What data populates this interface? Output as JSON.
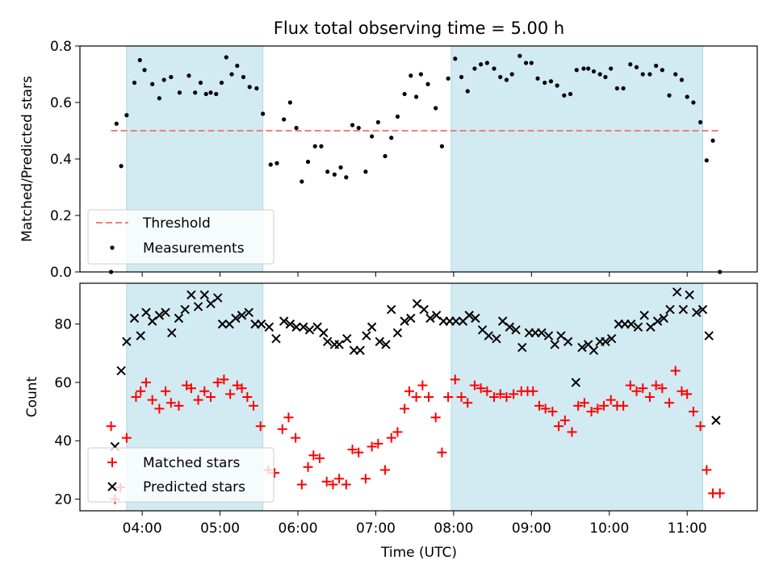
{
  "chart_data": {
    "title": "Flux total observing time = 5.00 h",
    "x_axis": {
      "label": "Time (UTC)",
      "range_hours": [
        3.2,
        11.9
      ],
      "ticks": [
        {
          "v": 4,
          "label": "04:00"
        },
        {
          "v": 5,
          "label": "05:00"
        },
        {
          "v": 6,
          "label": "06:00"
        },
        {
          "v": 7,
          "label": "07:00"
        },
        {
          "v": 8,
          "label": "08:00"
        },
        {
          "v": 9,
          "label": "09:00"
        },
        {
          "v": 10,
          "label": "10:00"
        },
        {
          "v": 11,
          "label": "11:00"
        }
      ]
    },
    "shaded_intervals_hours": [
      [
        3.8,
        5.55
      ],
      [
        7.97,
        11.2
      ]
    ],
    "shade_color": "#add8e6",
    "top": {
      "type": "scatter",
      "ylabel": "Matched/Predicted stars",
      "ylim": [
        0,
        0.8
      ],
      "yticks": [
        {
          "v": 0,
          "label": "0.0"
        },
        {
          "v": 0.2,
          "label": "0.2"
        },
        {
          "v": 0.4,
          "label": "0.4"
        },
        {
          "v": 0.6,
          "label": "0.6"
        },
        {
          "v": 0.8,
          "label": "0.8"
        }
      ],
      "threshold": {
        "name": "Threshold",
        "y": 0.5,
        "x_range": [
          3.6,
          11.4
        ],
        "color": "#f08080"
      },
      "measurements": {
        "name": "Measurements",
        "color": "#000000",
        "points": [
          [
            3.6,
            0.0
          ],
          [
            3.67,
            0.525
          ],
          [
            3.73,
            0.375
          ],
          [
            3.8,
            0.555
          ],
          [
            3.9,
            0.67
          ],
          [
            3.97,
            0.75
          ],
          [
            4.03,
            0.715
          ],
          [
            4.13,
            0.665
          ],
          [
            4.22,
            0.615
          ],
          [
            4.28,
            0.68
          ],
          [
            4.37,
            0.69
          ],
          [
            4.48,
            0.635
          ],
          [
            4.6,
            0.695
          ],
          [
            4.68,
            0.635
          ],
          [
            4.75,
            0.67
          ],
          [
            4.82,
            0.63
          ],
          [
            4.88,
            0.635
          ],
          [
            4.95,
            0.63
          ],
          [
            5.02,
            0.67
          ],
          [
            5.08,
            0.76
          ],
          [
            5.15,
            0.7
          ],
          [
            5.22,
            0.73
          ],
          [
            5.3,
            0.69
          ],
          [
            5.38,
            0.655
          ],
          [
            5.47,
            0.65
          ],
          [
            5.55,
            0.56
          ],
          [
            5.65,
            0.38
          ],
          [
            5.73,
            0.385
          ],
          [
            5.82,
            0.54
          ],
          [
            5.9,
            0.6
          ],
          [
            5.98,
            0.51
          ],
          [
            6.05,
            0.32
          ],
          [
            6.13,
            0.39
          ],
          [
            6.22,
            0.445
          ],
          [
            6.3,
            0.445
          ],
          [
            6.38,
            0.355
          ],
          [
            6.47,
            0.345
          ],
          [
            6.55,
            0.37
          ],
          [
            6.62,
            0.335
          ],
          [
            6.7,
            0.52
          ],
          [
            6.78,
            0.51
          ],
          [
            6.87,
            0.355
          ],
          [
            6.95,
            0.48
          ],
          [
            7.03,
            0.53
          ],
          [
            7.12,
            0.41
          ],
          [
            7.2,
            0.475
          ],
          [
            7.28,
            0.55
          ],
          [
            7.37,
            0.63
          ],
          [
            7.45,
            0.695
          ],
          [
            7.52,
            0.62
          ],
          [
            7.58,
            0.7
          ],
          [
            7.67,
            0.665
          ],
          [
            7.77,
            0.58
          ],
          [
            7.85,
            0.445
          ],
          [
            7.93,
            0.685
          ],
          [
            8.02,
            0.755
          ],
          [
            8.1,
            0.69
          ],
          [
            8.18,
            0.64
          ],
          [
            8.27,
            0.72
          ],
          [
            8.35,
            0.735
          ],
          [
            8.43,
            0.74
          ],
          [
            8.52,
            0.72
          ],
          [
            8.6,
            0.69
          ],
          [
            8.68,
            0.68
          ],
          [
            8.75,
            0.7
          ],
          [
            8.85,
            0.765
          ],
          [
            8.93,
            0.74
          ],
          [
            9.0,
            0.74
          ],
          [
            9.08,
            0.685
          ],
          [
            9.17,
            0.67
          ],
          [
            9.25,
            0.675
          ],
          [
            9.33,
            0.66
          ],
          [
            9.42,
            0.625
          ],
          [
            9.5,
            0.63
          ],
          [
            9.58,
            0.715
          ],
          [
            9.67,
            0.72
          ],
          [
            9.73,
            0.72
          ],
          [
            9.8,
            0.71
          ],
          [
            9.88,
            0.7
          ],
          [
            9.95,
            0.69
          ],
          [
            10.02,
            0.72
          ],
          [
            10.1,
            0.65
          ],
          [
            10.18,
            0.65
          ],
          [
            10.27,
            0.735
          ],
          [
            10.35,
            0.725
          ],
          [
            10.43,
            0.7
          ],
          [
            10.52,
            0.7
          ],
          [
            10.6,
            0.73
          ],
          [
            10.68,
            0.715
          ],
          [
            10.77,
            0.625
          ],
          [
            10.85,
            0.7
          ],
          [
            10.93,
            0.68
          ],
          [
            11.0,
            0.62
          ],
          [
            11.08,
            0.6
          ],
          [
            11.17,
            0.53
          ],
          [
            11.25,
            0.395
          ],
          [
            11.33,
            0.465
          ],
          [
            11.42,
            0.0
          ]
        ]
      }
    },
    "bottom": {
      "type": "scatter",
      "ylabel": "Count",
      "ylim": [
        16,
        94
      ],
      "yticks": [
        {
          "v": 20,
          "label": "20"
        },
        {
          "v": 40,
          "label": "40"
        },
        {
          "v": 60,
          "label": "60"
        },
        {
          "v": 80,
          "label": "80"
        }
      ],
      "matched": {
        "name": "Matched stars",
        "color": "#ff0000",
        "points": [
          [
            3.6,
            45
          ],
          [
            3.65,
            20
          ],
          [
            3.72,
            24
          ],
          [
            3.8,
            41
          ],
          [
            3.92,
            55
          ],
          [
            3.98,
            57
          ],
          [
            4.05,
            60
          ],
          [
            4.13,
            54
          ],
          [
            4.22,
            51
          ],
          [
            4.3,
            57
          ],
          [
            4.37,
            53
          ],
          [
            4.47,
            52
          ],
          [
            4.57,
            59
          ],
          [
            4.63,
            58
          ],
          [
            4.72,
            54
          ],
          [
            4.8,
            57
          ],
          [
            4.88,
            55
          ],
          [
            4.97,
            60
          ],
          [
            5.05,
            61
          ],
          [
            5.13,
            56
          ],
          [
            5.22,
            59
          ],
          [
            5.28,
            58
          ],
          [
            5.35,
            55
          ],
          [
            5.43,
            52
          ],
          [
            5.52,
            45
          ],
          [
            5.62,
            30
          ],
          [
            5.7,
            29
          ],
          [
            5.8,
            44
          ],
          [
            5.88,
            48
          ],
          [
            5.97,
            41
          ],
          [
            6.05,
            25
          ],
          [
            6.13,
            31
          ],
          [
            6.2,
            35
          ],
          [
            6.28,
            34
          ],
          [
            6.37,
            26
          ],
          [
            6.45,
            25
          ],
          [
            6.53,
            27
          ],
          [
            6.62,
            25
          ],
          [
            6.7,
            37
          ],
          [
            6.78,
            36
          ],
          [
            6.87,
            27
          ],
          [
            6.95,
            38
          ],
          [
            7.03,
            39
          ],
          [
            7.12,
            30
          ],
          [
            7.2,
            41
          ],
          [
            7.28,
            43
          ],
          [
            7.37,
            51
          ],
          [
            7.43,
            57
          ],
          [
            7.52,
            55
          ],
          [
            7.6,
            59
          ],
          [
            7.68,
            55
          ],
          [
            7.77,
            48
          ],
          [
            7.85,
            36
          ],
          [
            7.93,
            55
          ],
          [
            8.02,
            61
          ],
          [
            8.1,
            55
          ],
          [
            8.18,
            53
          ],
          [
            8.27,
            59
          ],
          [
            8.35,
            58
          ],
          [
            8.43,
            57
          ],
          [
            8.52,
            55
          ],
          [
            8.6,
            56
          ],
          [
            8.68,
            55
          ],
          [
            8.77,
            56
          ],
          [
            8.87,
            57
          ],
          [
            8.95,
            57
          ],
          [
            9.02,
            57
          ],
          [
            9.1,
            52
          ],
          [
            9.18,
            51
          ],
          [
            9.27,
            50
          ],
          [
            9.35,
            45
          ],
          [
            9.43,
            47
          ],
          [
            9.52,
            43
          ],
          [
            9.6,
            52
          ],
          [
            9.68,
            53
          ],
          [
            9.77,
            50
          ],
          [
            9.85,
            51
          ],
          [
            9.93,
            52
          ],
          [
            10.02,
            54
          ],
          [
            10.1,
            52
          ],
          [
            10.18,
            52
          ],
          [
            10.27,
            59
          ],
          [
            10.35,
            57
          ],
          [
            10.43,
            58
          ],
          [
            10.52,
            55
          ],
          [
            10.6,
            59
          ],
          [
            10.68,
            58
          ],
          [
            10.77,
            53
          ],
          [
            10.85,
            64
          ],
          [
            10.93,
            57
          ],
          [
            11.0,
            56
          ],
          [
            11.08,
            50
          ],
          [
            11.17,
            45
          ],
          [
            11.25,
            30
          ],
          [
            11.33,
            22
          ],
          [
            11.42,
            22
          ]
        ]
      },
      "predicted": {
        "name": "Predicted stars",
        "color": "#000000",
        "points": [
          [
            3.65,
            38
          ],
          [
            3.73,
            64
          ],
          [
            3.8,
            74
          ],
          [
            3.9,
            82
          ],
          [
            3.98,
            76
          ],
          [
            4.05,
            84
          ],
          [
            4.13,
            81
          ],
          [
            4.22,
            83
          ],
          [
            4.3,
            84
          ],
          [
            4.38,
            77
          ],
          [
            4.47,
            82
          ],
          [
            4.55,
            85
          ],
          [
            4.63,
            90
          ],
          [
            4.72,
            86
          ],
          [
            4.8,
            90
          ],
          [
            4.88,
            87
          ],
          [
            4.97,
            89
          ],
          [
            5.03,
            80
          ],
          [
            5.12,
            80
          ],
          [
            5.2,
            82
          ],
          [
            5.28,
            83
          ],
          [
            5.37,
            84
          ],
          [
            5.45,
            80
          ],
          [
            5.53,
            80
          ],
          [
            5.63,
            79
          ],
          [
            5.72,
            75
          ],
          [
            5.82,
            81
          ],
          [
            5.9,
            80
          ],
          [
            5.98,
            79
          ],
          [
            6.07,
            79
          ],
          [
            6.15,
            78
          ],
          [
            6.25,
            79
          ],
          [
            6.33,
            77
          ],
          [
            6.38,
            74
          ],
          [
            6.47,
            73
          ],
          [
            6.53,
            73
          ],
          [
            6.63,
            75
          ],
          [
            6.72,
            71
          ],
          [
            6.8,
            71
          ],
          [
            6.88,
            76
          ],
          [
            6.95,
            79
          ],
          [
            7.05,
            74
          ],
          [
            7.13,
            73
          ],
          [
            7.2,
            85
          ],
          [
            7.28,
            77
          ],
          [
            7.37,
            81
          ],
          [
            7.45,
            82
          ],
          [
            7.53,
            87
          ],
          [
            7.62,
            85
          ],
          [
            7.7,
            82
          ],
          [
            7.78,
            83
          ],
          [
            7.87,
            81
          ],
          [
            7.95,
            81
          ],
          [
            8.03,
            81
          ],
          [
            8.12,
            81
          ],
          [
            8.2,
            83
          ],
          [
            8.28,
            82
          ],
          [
            8.37,
            78
          ],
          [
            8.45,
            76
          ],
          [
            8.55,
            75
          ],
          [
            8.63,
            81
          ],
          [
            8.72,
            79
          ],
          [
            8.8,
            78
          ],
          [
            8.88,
            72
          ],
          [
            8.97,
            77
          ],
          [
            9.05,
            77
          ],
          [
            9.13,
            77
          ],
          [
            9.22,
            76
          ],
          [
            9.3,
            73
          ],
          [
            9.38,
            76
          ],
          [
            9.47,
            74
          ],
          [
            9.57,
            60
          ],
          [
            9.65,
            72
          ],
          [
            9.73,
            73
          ],
          [
            9.8,
            71
          ],
          [
            9.88,
            74
          ],
          [
            9.95,
            74
          ],
          [
            10.03,
            75
          ],
          [
            10.12,
            80
          ],
          [
            10.2,
            80
          ],
          [
            10.28,
            80
          ],
          [
            10.37,
            79
          ],
          [
            10.45,
            83
          ],
          [
            10.53,
            79
          ],
          [
            10.62,
            81
          ],
          [
            10.7,
            82
          ],
          [
            10.78,
            85
          ],
          [
            10.87,
            91
          ],
          [
            10.95,
            85
          ],
          [
            11.03,
            90
          ],
          [
            11.12,
            84
          ],
          [
            11.2,
            85
          ],
          [
            11.28,
            76
          ],
          [
            11.37,
            47
          ]
        ]
      }
    },
    "legends": {
      "top": {
        "placement": "lower-left",
        "entries": [
          "Threshold",
          "Measurements"
        ]
      },
      "bottom": {
        "placement": "lower-left",
        "entries": [
          "Matched stars",
          "Predicted stars"
        ]
      }
    }
  }
}
